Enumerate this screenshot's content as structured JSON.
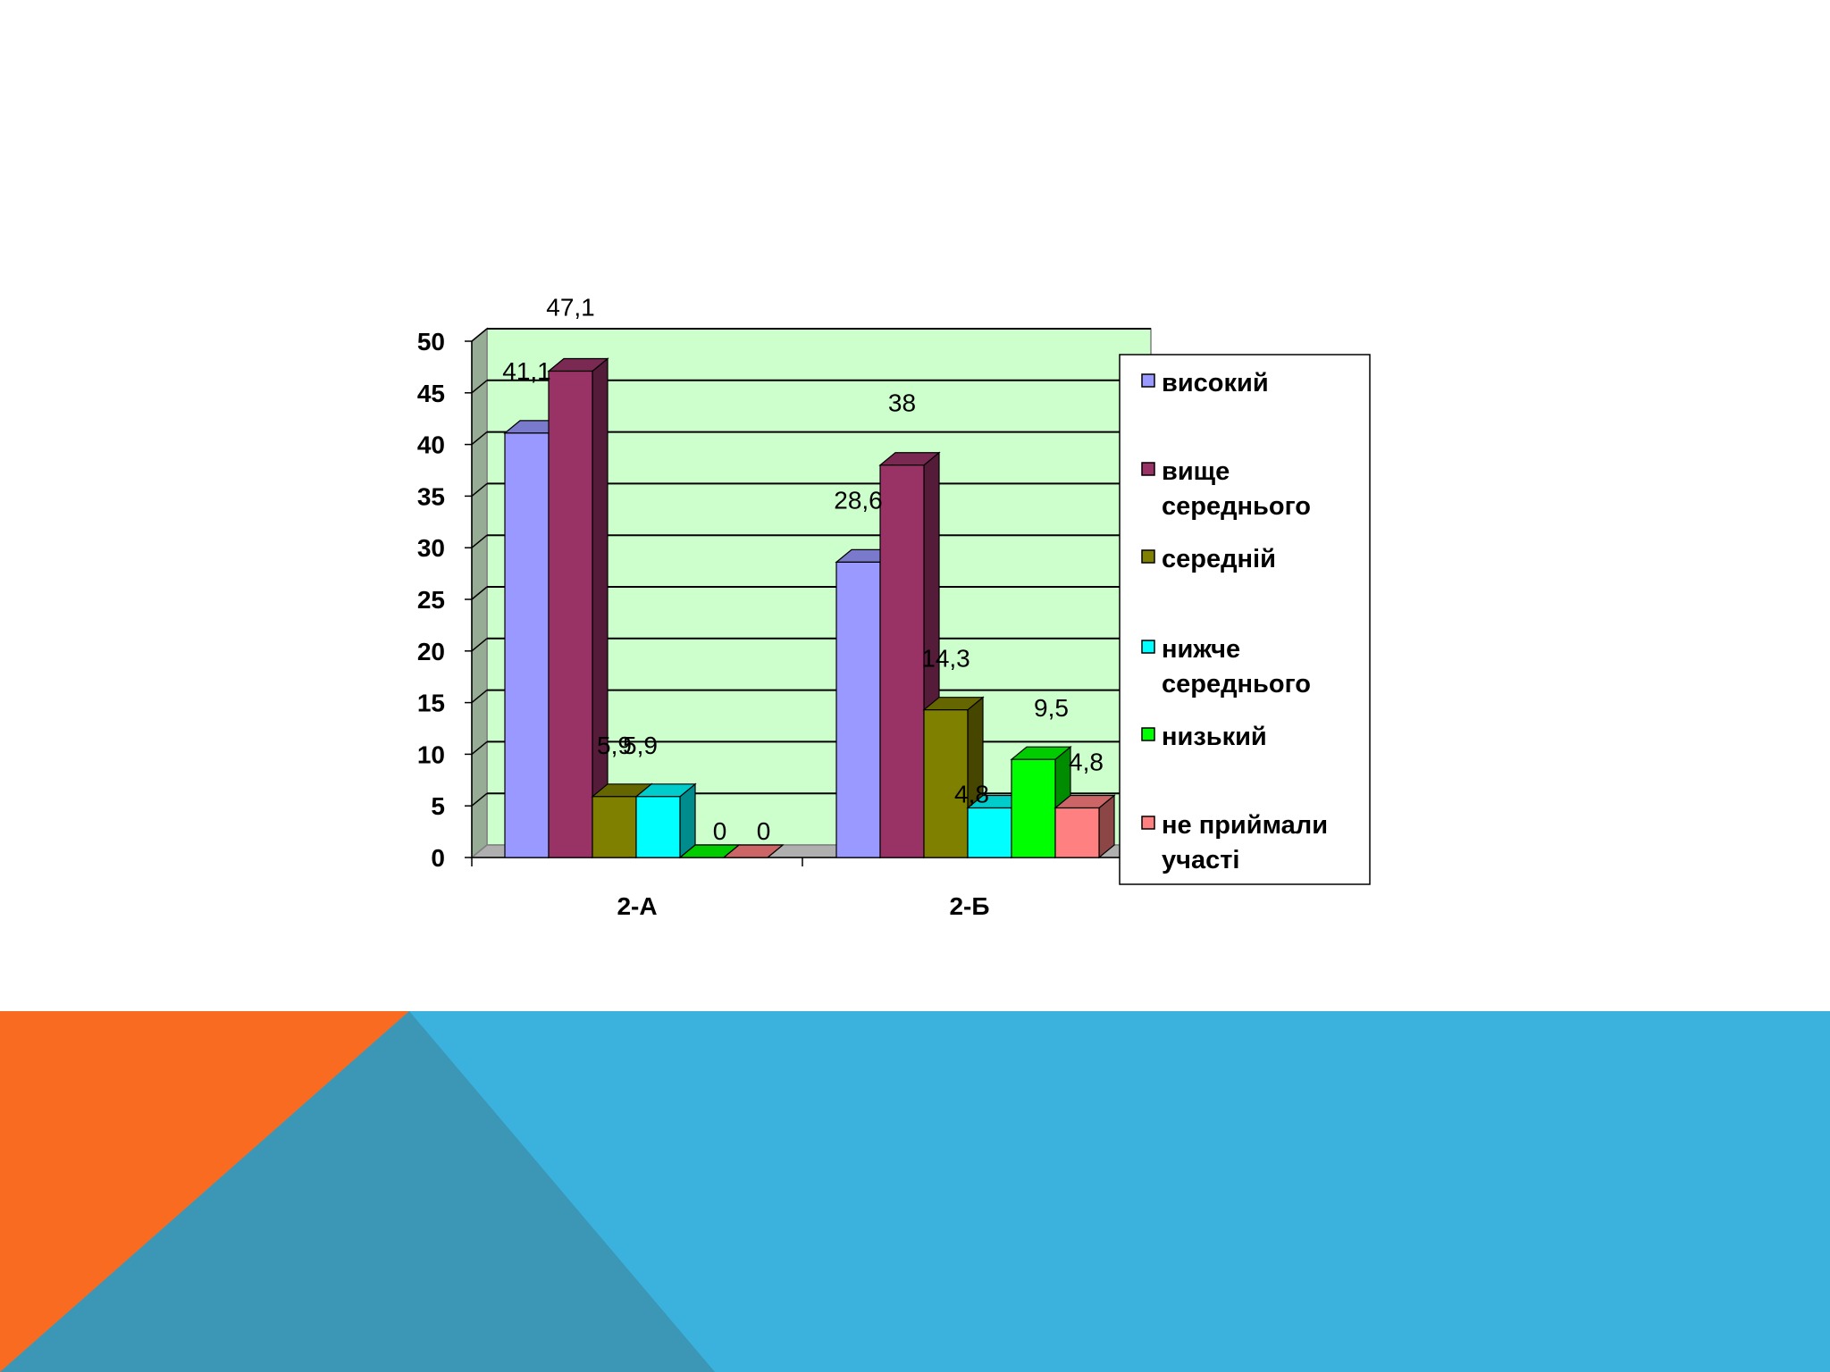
{
  "theme": {
    "orange": "#F96B20",
    "blue": "#3AB2DD",
    "dark_blue": "#3C96B6",
    "plot_bg": "#CCFFCC",
    "wall_side": "#96AC94",
    "floor": "#AFAFAF"
  },
  "chart_data": {
    "type": "bar",
    "style": "3d-clustered-column",
    "categories": [
      "2-А",
      "2-Б"
    ],
    "series": [
      {
        "name": "високий",
        "values": [
          41.1,
          28.6
        ],
        "labels": [
          "41,1",
          "28,6"
        ],
        "color": "#9999FF"
      },
      {
        "name": "вище середнього",
        "values": [
          47.1,
          38
        ],
        "labels": [
          "47,1",
          "38"
        ],
        "color": "#993366"
      },
      {
        "name": "середній",
        "values": [
          5.9,
          14.3
        ],
        "labels": [
          "5,9",
          "14,3"
        ],
        "color": "#808000"
      },
      {
        "name": "нижче середнього",
        "values": [
          5.9,
          4.8
        ],
        "labels": [
          "5,9",
          "4,8"
        ],
        "color": "#00FFFF"
      },
      {
        "name": "низький",
        "values": [
          0,
          9.5
        ],
        "labels": [
          "0",
          "9,5"
        ],
        "color": "#00FF00"
      },
      {
        "name": "не приймали участі",
        "values": [
          0,
          4.8
        ],
        "labels": [
          "0",
          "4,8"
        ],
        "color": "#FF8080"
      }
    ],
    "ylim": [
      0,
      50
    ],
    "yticks": [
      "0",
      "5",
      "10",
      "15",
      "20",
      "25",
      "30",
      "35",
      "40",
      "45",
      "50"
    ],
    "grid": true,
    "legend_position": "right",
    "legend_lines": [
      [
        "високий"
      ],
      [
        "вище",
        "середнього"
      ],
      [
        "середній"
      ],
      [
        "нижче",
        "середнього"
      ],
      [
        "низький"
      ],
      [
        "не приймали",
        "участі"
      ]
    ]
  }
}
